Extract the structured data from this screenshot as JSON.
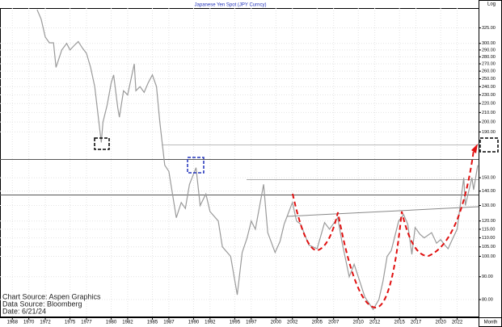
{
  "chart_data": {
    "type": "line",
    "title": "Japanese Yen Spot (JPY Curncy)",
    "y_scale_label": "Log",
    "x_axis_label": "Month",
    "annotations": [
      "Chart Source: Aspen Graphics",
      "Data Source: Bloomberg",
      "Date:  6/21/24"
    ],
    "log_scale": true,
    "grid": true,
    "xlim": [
      1966.5,
      2024.6
    ],
    "xticks": [
      1968,
      1970,
      1972,
      1975,
      1977,
      1980,
      1982,
      1985,
      1987,
      1990,
      1992,
      1995,
      1997,
      2000,
      2002,
      2005,
      2007,
      2010,
      2012,
      2015,
      2017,
      2020,
      2022
    ],
    "ylim": [
      73,
      360
    ],
    "yticks": [
      {
        "value": 325,
        "label": "325.00"
      },
      {
        "value": 300,
        "label": "300.00"
      },
      {
        "value": 290,
        "label": "290.00"
      },
      {
        "value": 280,
        "label": "280.00"
      },
      {
        "value": 270,
        "label": "270.00"
      },
      {
        "value": 260,
        "label": "260.00"
      },
      {
        "value": 250,
        "label": "250.00"
      },
      {
        "value": 240,
        "label": "240.00"
      },
      {
        "value": 230,
        "label": "230.00"
      },
      {
        "value": 220,
        "label": "220.00"
      },
      {
        "value": 210,
        "label": "210.00"
      },
      {
        "value": 200,
        "label": "200.00"
      },
      {
        "value": 190,
        "label": "190.00"
      },
      {
        "value": 150,
        "label": "150.00"
      },
      {
        "value": 140,
        "label": "140.00"
      },
      {
        "value": 130,
        "label": "130.00"
      },
      {
        "value": 120,
        "label": "120.00"
      },
      {
        "value": 115,
        "label": "115.00"
      },
      {
        "value": 110,
        "label": "110.00"
      },
      {
        "value": 105,
        "label": "105.00"
      },
      {
        "value": 100,
        "label": "100.00"
      },
      {
        "value": 90,
        "label": "90.00"
      },
      {
        "value": 80,
        "label": "80.00"
      }
    ],
    "series": [
      {
        "name": "JPY Curncy",
        "color": "#9a9a9a",
        "x": [
          1971.0,
          1971.5,
          1972.0,
          1972.5,
          1973.0,
          1973.3,
          1974.0,
          1974.6,
          1975.0,
          1975.6,
          1976.0,
          1976.5,
          1977.0,
          1977.5,
          1978.0,
          1978.5,
          1978.8,
          1979.0,
          1979.5,
          1980.0,
          1980.3,
          1980.8,
          1981.0,
          1981.5,
          1982.0,
          1982.8,
          1983.0,
          1983.5,
          1984.0,
          1984.5,
          1985.0,
          1985.5,
          1985.9,
          1986.5,
          1987.0,
          1987.9,
          1988.5,
          1989.0,
          1989.5,
          1990.3,
          1990.8,
          1991.5,
          1992.0,
          1993.0,
          1993.5,
          1994.5,
          1995.3,
          1995.9,
          1996.5,
          1997.0,
          1997.5,
          1998.5,
          1999.0,
          1999.9,
          2000.5,
          2001.0,
          2002.0,
          2002.5,
          2003.0,
          2004.0,
          2005.0,
          2005.9,
          2006.5,
          2007.5,
          2008.0,
          2008.9,
          2009.5,
          2010.0,
          2010.8,
          2011.8,
          2012.5,
          2013.0,
          2013.5,
          2014.0,
          2014.9,
          2015.5,
          2016.0,
          2016.5,
          2016.9,
          2017.5,
          2018.0,
          2018.9,
          2019.5,
          2020.0,
          2020.5,
          2020.9,
          2021.5,
          2022.0,
          2022.8,
          2023.0,
          2023.8,
          2024.0,
          2024.5
        ],
        "values": [
          357,
          340,
          310,
          301,
          301,
          265,
          290,
          300,
          290,
          298,
          303,
          293,
          285,
          265,
          240,
          200,
          180,
          200,
          218,
          245,
          255,
          215,
          205,
          235,
          230,
          270,
          235,
          240,
          233,
          245,
          255,
          240,
          200,
          160,
          155,
          122,
          132,
          128,
          145,
          158,
          130,
          138,
          126,
          120,
          105,
          100,
          82,
          102,
          110,
          120,
          115,
          145,
          113,
          102,
          108,
          118,
          132,
          120,
          118,
          106,
          104,
          119,
          115,
          122,
          108,
          90,
          96,
          90,
          81,
          76,
          80,
          88,
          100,
          103,
          120,
          124,
          118,
          101,
          116,
          112,
          110,
          113,
          107,
          109,
          106,
          104,
          110,
          115,
          150,
          130,
          150,
          141,
          160
        ]
      }
    ]
  }
}
